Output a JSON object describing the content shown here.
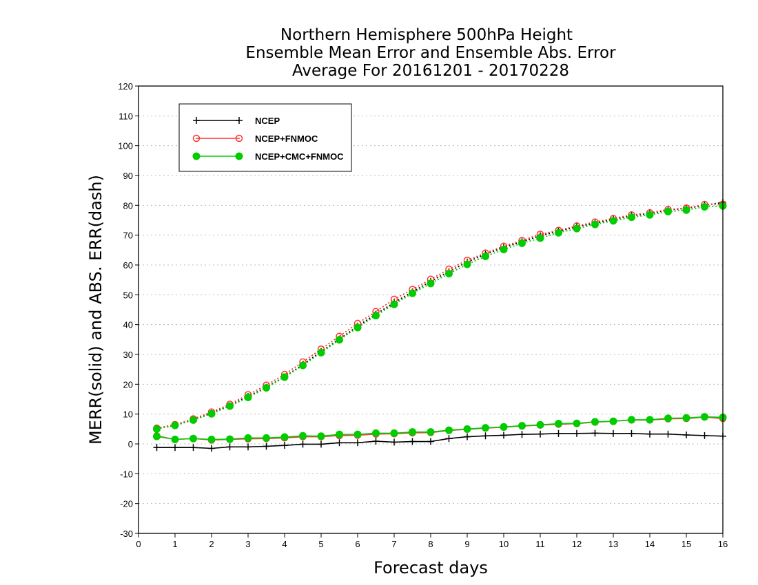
{
  "chart_data": {
    "type": "line",
    "title_lines": [
      "Northern Hemisphere 500hPa Height",
      "Ensemble Mean Error and Ensemble Abs. Error",
      "Average For 20161201 - 20170228"
    ],
    "xlabel": "Forecast days",
    "ylabel": "MERR(solid) and ABS. ERR(dash)",
    "xlim": [
      0,
      16
    ],
    "ylim": [
      -30,
      120
    ],
    "x_ticks": [
      0,
      1,
      2,
      3,
      4,
      5,
      6,
      7,
      8,
      9,
      10,
      11,
      12,
      13,
      14,
      15,
      16
    ],
    "y_ticks": [
      -30,
      -20,
      -10,
      0,
      10,
      20,
      30,
      40,
      50,
      60,
      70,
      80,
      90,
      100,
      110,
      120
    ],
    "grid": true,
    "legend_position": "top-left",
    "x": [
      0.5,
      1,
      1.5,
      2,
      2.5,
      3,
      3.5,
      4,
      4.5,
      5,
      5.5,
      6,
      6.5,
      7,
      7.5,
      8,
      8.5,
      9,
      9.5,
      10,
      10.5,
      11,
      11.5,
      12,
      12.5,
      13,
      13.5,
      14,
      14.5,
      15,
      15.5,
      16
    ],
    "series": [
      {
        "name": "NCEP",
        "color": "#000000",
        "marker": "plus",
        "merr": [
          -1.2,
          -1.2,
          -1.2,
          -1.5,
          -1.0,
          -1.0,
          -0.8,
          -0.5,
          -0.1,
          -0.1,
          0.4,
          0.4,
          0.9,
          0.6,
          0.8,
          0.8,
          1.8,
          2.4,
          2.7,
          2.9,
          3.2,
          3.3,
          3.5,
          3.5,
          3.6,
          3.5,
          3.5,
          3.3,
          3.3,
          3.0,
          2.8,
          2.6
        ],
        "abs_err": [
          5.2,
          6.2,
          8.0,
          10.3,
          12.8,
          15.9,
          19.0,
          22.5,
          26.6,
          31.0,
          35.1,
          39.5,
          43.5,
          47.4,
          51.0,
          54.5,
          57.8,
          61.0,
          63.6,
          65.9,
          67.8,
          69.8,
          71.3,
          72.8,
          74.0,
          75.3,
          76.5,
          77.3,
          78.4,
          79.0,
          80.0,
          81.0
        ]
      },
      {
        "name": "NCEP+FNMOC",
        "color": "#ff3333",
        "marker": "open-circle",
        "merr": [
          2.7,
          1.5,
          1.8,
          1.3,
          1.5,
          1.7,
          1.8,
          2.0,
          2.4,
          2.4,
          2.8,
          2.9,
          3.3,
          3.4,
          3.7,
          3.8,
          4.5,
          4.9,
          5.3,
          5.6,
          6.0,
          6.3,
          6.6,
          6.8,
          7.3,
          7.6,
          8.0,
          8.0,
          8.4,
          8.5,
          9.0,
          8.5
        ],
        "abs_err": [
          5.3,
          6.5,
          8.4,
          10.7,
          13.3,
          16.5,
          19.7,
          23.3,
          27.5,
          31.8,
          36.1,
          40.4,
          44.4,
          48.5,
          51.8,
          55.2,
          58.6,
          61.6,
          64.0,
          66.3,
          68.2,
          70.3,
          71.6,
          73.1,
          74.4,
          75.6,
          76.8,
          77.5,
          78.6,
          79.1,
          80.3,
          80.4
        ]
      },
      {
        "name": "NCEP+CMC+FNMOC",
        "color": "#00cc00",
        "marker": "filled-circle",
        "merr": [
          2.5,
          1.5,
          1.8,
          1.5,
          1.6,
          2.0,
          2.0,
          2.3,
          2.7,
          2.6,
          3.2,
          3.2,
          3.6,
          3.6,
          4.0,
          4.0,
          4.6,
          5.0,
          5.4,
          5.7,
          6.1,
          6.4,
          6.8,
          6.9,
          7.4,
          7.6,
          8.1,
          8.1,
          8.6,
          8.7,
          9.1,
          8.9
        ],
        "abs_err": [
          5.0,
          6.2,
          8.0,
          10.1,
          12.7,
          15.6,
          18.8,
          22.4,
          26.3,
          30.6,
          34.9,
          39.0,
          43.0,
          46.8,
          50.5,
          53.8,
          57.1,
          60.2,
          62.9,
          65.2,
          67.3,
          69.0,
          70.8,
          72.2,
          73.6,
          74.8,
          76.0,
          76.8,
          77.9,
          78.4,
          79.5,
          79.8
        ]
      }
    ]
  }
}
